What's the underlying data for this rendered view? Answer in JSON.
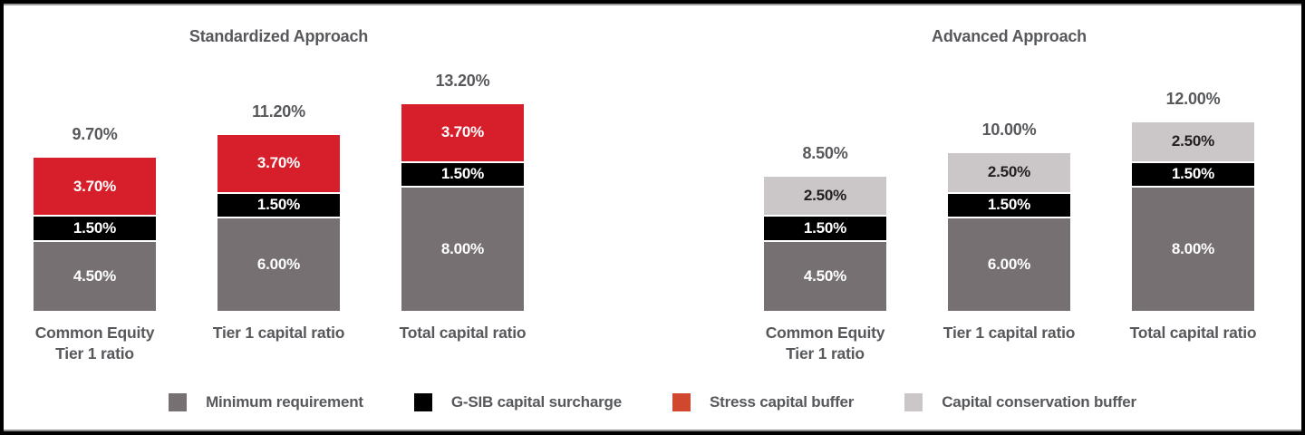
{
  "page": {
    "background": "#FFFFFF",
    "frame_border_color": "#000000"
  },
  "colors": {
    "bar_red": "#D71F2B",
    "bar_black": "#000000",
    "bar_gray": "#767072",
    "bar_light_gray": "#CBC6C7",
    "text_dark_gray": "#57585B",
    "legend_red_swatch": "#D0492E"
  },
  "chart_data": [
    {
      "type": "bar",
      "stacked": true,
      "title": "Standardized Approach",
      "unit": "%",
      "ylim": [
        0,
        14
      ],
      "grid": false,
      "axes_shown": false,
      "categories": [
        "Common Equity\nTier 1 ratio",
        "Tier 1 capital ratio",
        "Total capital ratio"
      ],
      "series": [
        {
          "name": "Minimum requirement",
          "values": [
            4.5,
            6.0,
            8.0
          ],
          "labels": [
            "4.50%",
            "6.00%",
            "8.00%"
          ],
          "color": "#767072",
          "label_color": "#FFFFFF"
        },
        {
          "name": "G-SIB capital surcharge",
          "values": [
            1.5,
            1.5,
            1.5
          ],
          "labels": [
            "1.50%",
            "1.50%",
            "1.50%"
          ],
          "color": "#000000",
          "label_color": "#FFFFFF"
        },
        {
          "name": "Stress capital buffer",
          "values": [
            3.7,
            3.7,
            3.7
          ],
          "labels": [
            "3.70%",
            "3.70%",
            "3.70%"
          ],
          "color": "#D71F2B",
          "label_color": "#FFFFFF"
        }
      ],
      "totals": [
        9.7,
        11.2,
        13.2
      ],
      "total_labels": [
        "9.70%",
        "11.20%",
        "13.20%"
      ]
    },
    {
      "type": "bar",
      "stacked": true,
      "title": "Advanced Approach",
      "unit": "%",
      "ylim": [
        0,
        14
      ],
      "grid": false,
      "axes_shown": false,
      "categories": [
        "Common Equity\nTier 1 ratio",
        "Tier 1 capital ratio",
        "Total capital ratio"
      ],
      "series": [
        {
          "name": "Minimum requirement",
          "values": [
            4.5,
            6.0,
            8.0
          ],
          "labels": [
            "4.50%",
            "6.00%",
            "8.00%"
          ],
          "color": "#767072",
          "label_color": "#FFFFFF"
        },
        {
          "name": "G-SIB capital surcharge",
          "values": [
            1.5,
            1.5,
            1.5
          ],
          "labels": [
            "1.50%",
            "1.50%",
            "1.50%"
          ],
          "color": "#000000",
          "label_color": "#FFFFFF"
        },
        {
          "name": "Capital conservation buffer",
          "values": [
            2.5,
            2.5,
            2.5
          ],
          "labels": [
            "2.50%",
            "2.50%",
            "2.50%"
          ],
          "color": "#CBC6C7",
          "label_color": "#231F20"
        }
      ],
      "totals": [
        8.5,
        10.0,
        12.0
      ],
      "total_labels": [
        "8.50%",
        "10.00%",
        "12.00%"
      ]
    }
  ],
  "legend": {
    "items": [
      {
        "label": "Minimum requirement",
        "color": "#767072"
      },
      {
        "label": "G-SIB capital surcharge",
        "color": "#000000"
      },
      {
        "label": "Stress capital buffer",
        "color": "#D0492E"
      },
      {
        "label": "Capital conservation buffer",
        "color": "#CBC6C7"
      }
    ]
  }
}
